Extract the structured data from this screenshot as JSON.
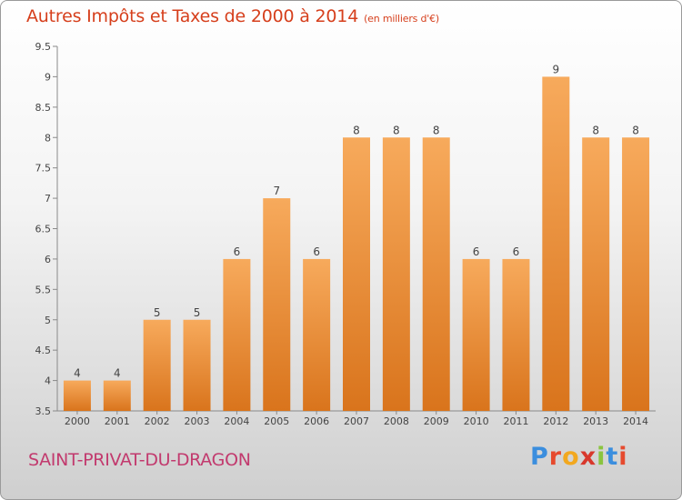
{
  "header": {
    "title": "Autres Impôts et Taxes de 2000 à 2014",
    "unit": "(en milliers d'€)"
  },
  "footer": {
    "commune": "SAINT-PRIVAT-DU-DRAGON",
    "brand": "Proxiti"
  },
  "colors": {
    "title": "#d63f1c",
    "commune": "#c23a6e",
    "bar_top": "#f7aa5c",
    "bar_bottom": "#d9741c",
    "brand_letters": [
      "#3b8ede",
      "#e64a2e",
      "#f2a81f",
      "#d8382c",
      "#8ac43f",
      "#3b8ede",
      "#e64a2e"
    ]
  },
  "chart_data": {
    "type": "bar",
    "title": "Autres Impôts et Taxes de 2000 à 2014",
    "categories": [
      "2000",
      "2001",
      "2002",
      "2003",
      "2004",
      "2005",
      "2006",
      "2007",
      "2008",
      "2009",
      "2010",
      "2011",
      "2012",
      "2013",
      "2014"
    ],
    "values": [
      4,
      4,
      5,
      5,
      6,
      7,
      6,
      8,
      8,
      8,
      6,
      6,
      9,
      8,
      8
    ],
    "ylim": [
      3.5,
      9.5
    ],
    "yticks": [
      "3.5",
      "4",
      "4.5",
      "5",
      "5.5",
      "6",
      "6.5",
      "7",
      "7.5",
      "8",
      "8.5",
      "9",
      "9.5"
    ],
    "grid": false,
    "xlabel": "",
    "ylabel": ""
  }
}
